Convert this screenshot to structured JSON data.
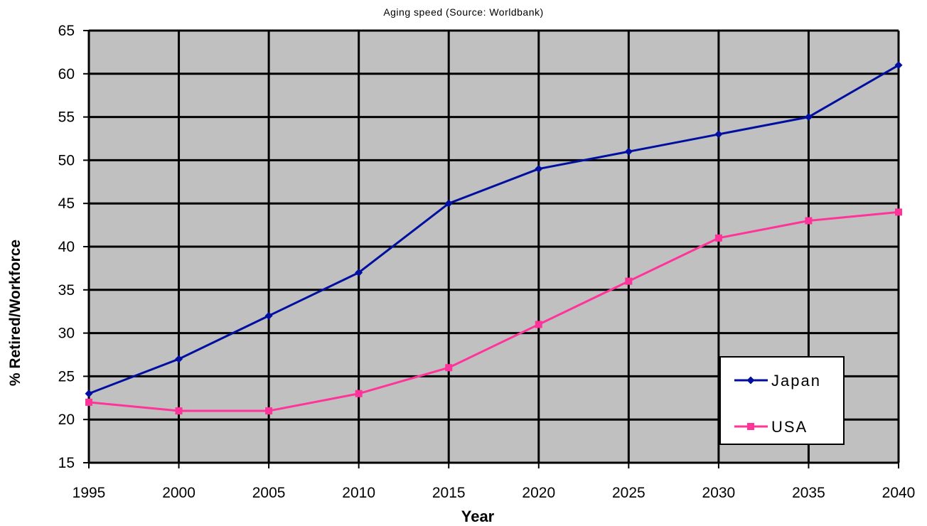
{
  "chart_data": {
    "type": "line",
    "title": "Aging speed (Source: Worldbank)",
    "xlabel": "Year",
    "ylabel": "% Retired/Workforce",
    "x": [
      1995,
      2000,
      2005,
      2010,
      2015,
      2020,
      2025,
      2030,
      2035,
      2040
    ],
    "ylim": [
      15,
      65
    ],
    "y_ticks": [
      15,
      20,
      25,
      30,
      35,
      40,
      45,
      50,
      55,
      60,
      65
    ],
    "grid": true,
    "legend_position": "bottom-right",
    "plot_background": "#c0c0c0",
    "series": [
      {
        "name": "Japan",
        "color": "#000f9f",
        "marker": "diamond",
        "values": [
          23,
          27,
          32,
          37,
          45,
          49,
          51,
          53,
          55,
          61
        ]
      },
      {
        "name": "USA",
        "color": "#ff3399",
        "marker": "square",
        "values": [
          22,
          21,
          21,
          23,
          26,
          31,
          36,
          41,
          43,
          44
        ]
      }
    ]
  }
}
